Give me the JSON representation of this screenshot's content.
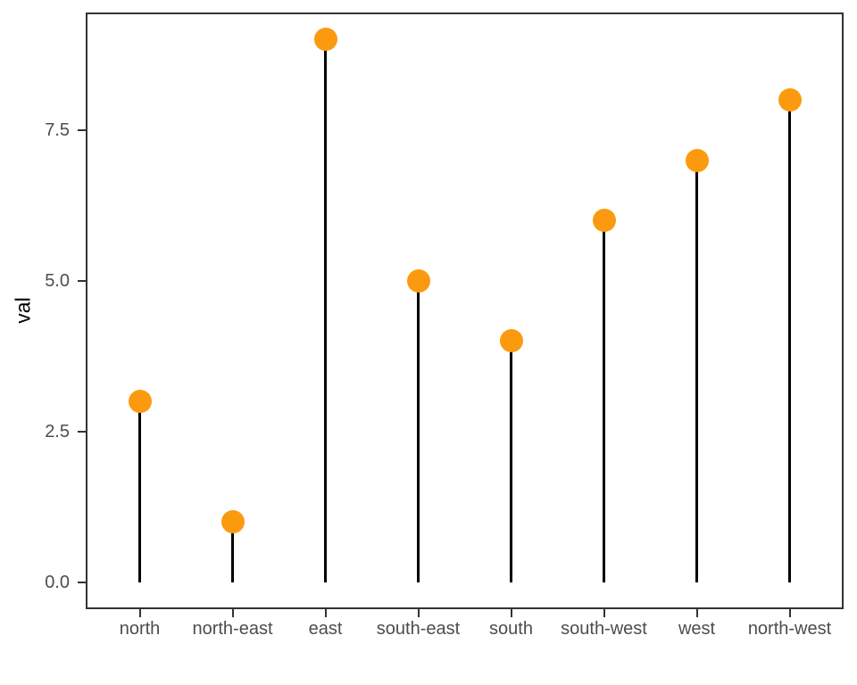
{
  "chart_data": {
    "type": "lollipop",
    "categories": [
      "north",
      "north-east",
      "east",
      "south-east",
      "south",
      "south-west",
      "west",
      "north-west"
    ],
    "values": [
      3,
      1,
      9,
      5,
      4,
      6,
      7,
      8
    ],
    "title": "",
    "xlabel": "",
    "ylabel": "val",
    "ylim": [
      -0.45,
      9.45
    ],
    "y_major_ticks": [
      0,
      2.5,
      5,
      7.5
    ],
    "y_tick_labels": [
      "0.0",
      "2.5",
      "5.0",
      "7.5"
    ],
    "y_minor_ticks": [
      1.25,
      3.75,
      6.25,
      8.75
    ],
    "grid": "horizontal major+minor, vertical major per category, on white panel",
    "legend": "none",
    "colors": {
      "point": "#fb9a0e",
      "stem": "#000000",
      "panel_border": "#333333",
      "grid_major": "#e6e6e6",
      "grid_minor": "#f2f2f2",
      "tick_label": "#4d4d4d",
      "axis_title": "#000000"
    }
  }
}
